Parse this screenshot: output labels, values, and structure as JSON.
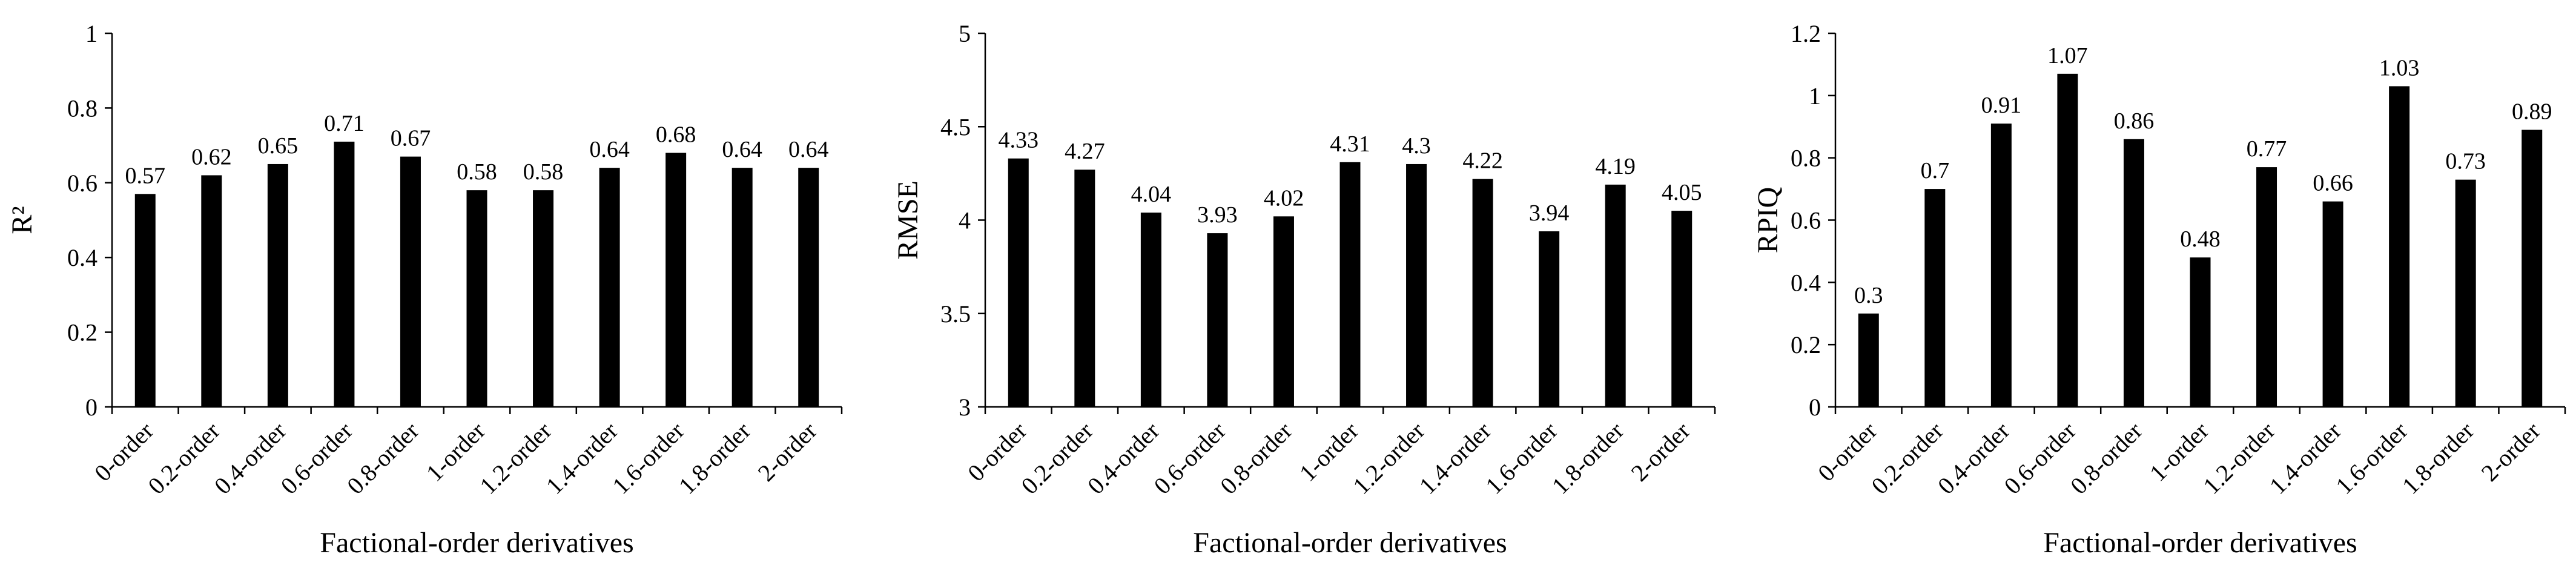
{
  "chart_data": [
    {
      "type": "bar",
      "categories": [
        "0-order",
        "0.2-order",
        "0.4-order",
        "0.6-order",
        "0.8-order",
        "1-order",
        "1.2-order",
        "1.4-order",
        "1.6-order",
        "1.8-order",
        "2-order"
      ],
      "values": [
        0.57,
        0.62,
        0.65,
        0.71,
        0.67,
        0.58,
        0.58,
        0.64,
        0.68,
        0.64,
        0.64
      ],
      "value_labels": [
        "0.57",
        "0.62",
        "0.65",
        "0.71",
        "0.67",
        "0.58",
        "0.58",
        "0.64",
        "0.68",
        "0.64",
        "0.64"
      ],
      "xlabel": "Factional-order derivatives",
      "ylabel": "R²",
      "ylim": [
        0,
        1
      ],
      "yticks": [
        0,
        0.2,
        0.4,
        0.6,
        0.8,
        1
      ],
      "ytick_labels": [
        "0",
        "0.2",
        "0.4",
        "0.6",
        "0.8",
        "1"
      ],
      "bar_color": "#000000",
      "grid": false,
      "legend": "none"
    },
    {
      "type": "bar",
      "categories": [
        "0-order",
        "0.2-order",
        "0.4-order",
        "0.6-order",
        "0.8-order",
        "1-order",
        "1.2-order",
        "1.4-order",
        "1.6-order",
        "1.8-order",
        "2-order"
      ],
      "values": [
        4.33,
        4.27,
        4.04,
        3.93,
        4.02,
        4.31,
        4.3,
        4.22,
        3.94,
        4.19,
        4.05
      ],
      "value_labels": [
        "4.33",
        "4.27",
        "4.04",
        "3.93",
        "4.02",
        "4.31",
        "4.3",
        "4.22",
        "3.94",
        "4.19",
        "4.05"
      ],
      "xlabel": "Factional-order derivatives",
      "ylabel": "RMSE",
      "ylim": [
        3,
        5
      ],
      "yticks": [
        3,
        3.5,
        4,
        4.5,
        5
      ],
      "ytick_labels": [
        "3",
        "3.5",
        "4",
        "4.5",
        "5"
      ],
      "bar_color": "#000000",
      "grid": false,
      "legend": "none"
    },
    {
      "type": "bar",
      "categories": [
        "0-order",
        "0.2-order",
        "0.4-order",
        "0.6-order",
        "0.8-order",
        "1-order",
        "1.2-order",
        "1.4-order",
        "1.6-order",
        "1.8-order",
        "2-order"
      ],
      "values": [
        0.3,
        0.7,
        0.91,
        1.07,
        0.86,
        0.48,
        0.77,
        0.66,
        1.03,
        0.73,
        0.89
      ],
      "value_labels": [
        "0.3",
        "0.7",
        "0.91",
        "1.07",
        "0.86",
        "0.48",
        "0.77",
        "0.66",
        "1.03",
        "0.73",
        "0.89"
      ],
      "xlabel": "Factional-order derivatives",
      "ylabel": "RPIQ",
      "ylim": [
        0,
        1.2
      ],
      "yticks": [
        0,
        0.2,
        0.4,
        0.6,
        0.8,
        1,
        1.2
      ],
      "ytick_labels": [
        "0",
        "0.2",
        "0.4",
        "0.6",
        "0.8",
        "1",
        "1.2"
      ],
      "bar_color": "#000000",
      "grid": false,
      "legend": "none"
    }
  ]
}
